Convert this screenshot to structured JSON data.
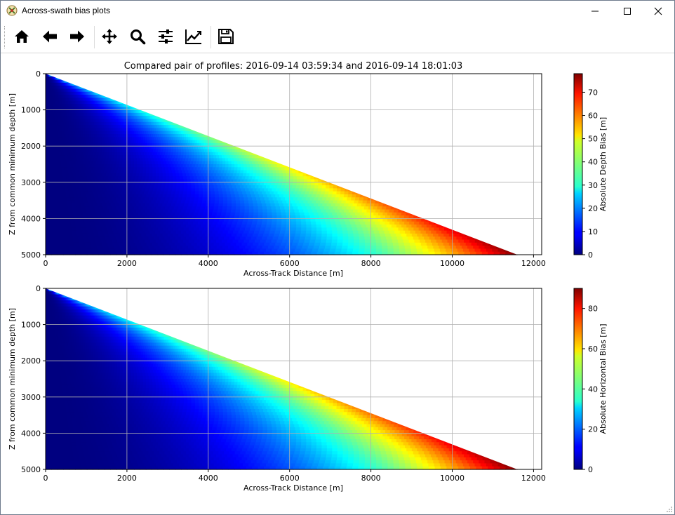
{
  "window": {
    "title": "Across-swath bias plots",
    "controls": {
      "minimize": "minimize",
      "maximize": "maximize",
      "close": "close"
    }
  },
  "toolbar": {
    "buttons": [
      {
        "name": "home",
        "icon": "home-icon"
      },
      {
        "name": "back",
        "icon": "arrow-left-icon"
      },
      {
        "name": "forward",
        "icon": "arrow-right-icon"
      },
      {
        "name": "pan",
        "icon": "move-icon"
      },
      {
        "name": "zoom",
        "icon": "search-icon"
      },
      {
        "name": "configure-subplots",
        "icon": "sliders-icon"
      },
      {
        "name": "edit-axis",
        "icon": "chart-line-icon"
      },
      {
        "name": "save",
        "icon": "floppy-disk-icon"
      }
    ]
  },
  "figure": {
    "suptitle": "Compared pair of profiles: 2016-09-14 03:59:34 and 2016-09-14 18:01:03"
  },
  "chart_data": [
    {
      "type": "heatmap",
      "title": "",
      "xlabel": "Across-Track Distance [m]",
      "ylabel": "Z from common minimum depth [m]",
      "xlim": [
        0,
        12200
      ],
      "ylim": [
        5000,
        0
      ],
      "x_ticks": [
        0,
        2000,
        4000,
        6000,
        8000,
        10000,
        12000
      ],
      "y_ticks": [
        0,
        1000,
        2000,
        3000,
        4000,
        5000
      ],
      "grid": true,
      "swath_edge": {
        "x": [
          0,
          11600
        ],
        "z": [
          0,
          5000
        ]
      },
      "colorbar": {
        "label": "Absolute Depth Bias [m]",
        "min": 0,
        "max": 78,
        "ticks": [
          0,
          10,
          20,
          30,
          40,
          50,
          60,
          70
        ],
        "colormap": "jet"
      }
    },
    {
      "type": "heatmap",
      "title": "",
      "xlabel": "Across-Track Distance [m]",
      "ylabel": "Z from common minimum depth [m]",
      "xlim": [
        0,
        12200
      ],
      "ylim": [
        5000,
        0
      ],
      "x_ticks": [
        0,
        2000,
        4000,
        6000,
        8000,
        10000,
        12000
      ],
      "y_ticks": [
        0,
        1000,
        2000,
        3000,
        4000,
        5000
      ],
      "grid": true,
      "swath_edge": {
        "x": [
          0,
          11600
        ],
        "z": [
          0,
          5000
        ]
      },
      "colorbar": {
        "label": "Absolute Horizontal Bias [m]",
        "min": 0,
        "max": 90,
        "ticks": [
          0,
          20,
          40,
          60,
          80
        ],
        "colormap": "jet"
      }
    }
  ]
}
